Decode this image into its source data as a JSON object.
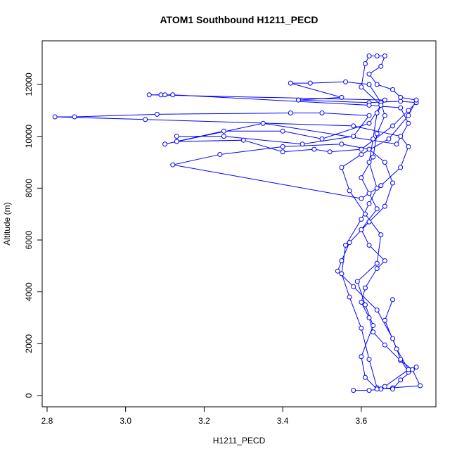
{
  "chart_data": {
    "type": "line",
    "markers": true,
    "title": "ATOM1 Southbound H1211_PECD",
    "x_label": "H1211_PECD",
    "y_label": "Altitude (m)",
    "xlim": [
      2.7875,
      3.79
    ],
    "ylim": [
      -434,
      13683
    ],
    "xticks": [
      2.8,
      {
        "value": 3,
        "label": "3.0"
      },
      3.2,
      3.4,
      3.6
    ],
    "yticks": [
      0,
      2000,
      4000,
      6000,
      8000,
      10000,
      12000
    ],
    "series": [
      {
        "color": "#0000ff",
        "x": [
          3.58,
          3.62,
          3.65,
          3.68,
          3.75,
          3.73,
          3.7,
          3.66,
          3.63,
          3.62,
          3.6,
          3.61,
          3.64,
          3.66,
          3.62,
          3.6,
          3.64,
          3.62,
          3.6,
          3.63,
          3.64,
          3.66,
          3.65,
          3.62,
          3.56,
          3.47,
          3.42,
          3.55,
          3.44,
          3.62,
          3.7,
          3.74,
          3.72,
          3.68,
          3.6,
          3.52,
          3.48,
          3.4,
          3.3,
          3.13,
          3.13,
          3.25,
          3.45,
          3.58,
          3.62,
          3.5,
          3.42,
          3.08,
          2.87,
          2.82,
          3.05,
          3.58,
          3.7,
          3.72,
          3.7,
          3.65,
          3.6,
          3.12,
          3.24,
          3.4,
          3.55,
          3.62,
          3.66,
          3.68,
          3.66,
          3.62,
          3.57,
          3.55,
          3.54,
          3.58,
          3.64,
          3.68,
          3.7,
          3.72,
          3.74,
          3.7,
          3.68,
          3.64,
          3.62,
          3.6,
          3.57,
          3.55,
          3.56,
          3.6,
          3.62,
          3.64,
          3.62,
          3.63,
          3.64,
          3.66,
          3.06,
          3.09,
          3.1,
          3.12,
          3.62,
          3.7,
          3.72,
          3.69,
          3.35,
          3.1,
          3.25,
          3.4,
          3.5,
          3.62,
          3.65,
          3.6,
          3.61,
          3.62,
          3.64,
          3.66,
          3.65,
          3.62,
          3.64,
          3.68,
          3.7,
          3.74,
          3.72,
          3.67,
          3.6,
          3.55,
          3.57,
          3.61,
          3.65,
          3.64,
          3.59,
          3.61,
          3.63,
          3.6,
          3.61,
          3.64,
          3.66,
          3.72,
          3.69,
          3.66,
          3.68
        ],
        "values": [
          200,
          200,
          250,
          300,
          380,
          1000,
          1350,
          1950,
          2450,
          3000,
          3600,
          4150,
          4900,
          5200,
          5800,
          6400,
          7200,
          7800,
          8400,
          9200,
          10100,
          10800,
          11300,
          12000,
          12100,
          12050,
          12050,
          11500,
          11400,
          11300,
          11350,
          11300,
          11000,
          10400,
          9500,
          9400,
          9500,
          9400,
          9850,
          9800,
          10000,
          10000,
          9700,
          10000,
          10800,
          10900,
          10900,
          10850,
          10750,
          10750,
          10650,
          10400,
          10000,
          9600,
          8800,
          8100,
          7600,
          8900,
          9300,
          9600,
          9700,
          9500,
          9000,
          8200,
          7300,
          6700,
          5900,
          5200,
          4800,
          4200,
          3300,
          2200,
          1400,
          900,
          1100,
          600,
          250,
          300,
          1400,
          2600,
          3800,
          4700,
          5800,
          6800,
          7400,
          8000,
          9000,
          9900,
          10900,
          11400,
          11600,
          11600,
          11600,
          11600,
          11200,
          11100,
          10500,
          9700,
          10500,
          9700,
          10200,
          10200,
          9900,
          10500,
          11200,
          11900,
          12800,
          13100,
          13100,
          13100,
          12700,
          12400,
          12000,
          11800,
          11500,
          11400,
          10800,
          9900,
          9300,
          8800,
          7900,
          7000,
          6200,
          5100,
          4400,
          3500,
          2700,
          1500,
          700,
          250,
          350,
          1000,
          1800,
          2900,
          3700
        ]
      }
    ]
  }
}
